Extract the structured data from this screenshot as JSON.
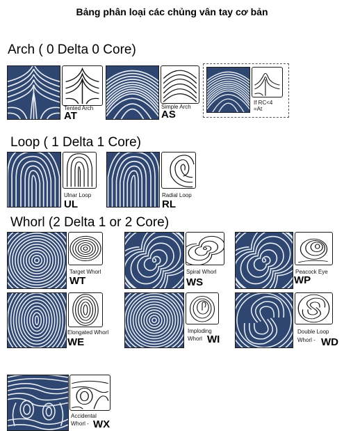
{
  "title": "Bảng phân loại các chủng vân tay cơ bản",
  "sections": {
    "arch": "Arch ( 0 Delta 0 Core)",
    "loop": "Loop ( 1 Delta 1 Core)",
    "whorl": "Whorl (2 Delta  1 or 2 Core)"
  },
  "patterns": {
    "at": {
      "label": "Tented Arch",
      "code": "AT"
    },
    "as": {
      "label": "Simple Arch",
      "code": "AS"
    },
    "rc": {
      "label1": "If RC<4",
      "label2": "=At"
    },
    "ul": {
      "label": "Ulnar Loop",
      "code": "UL"
    },
    "rl": {
      "label": "Radial Loop",
      "code": "RL"
    },
    "wt": {
      "label": "Target Whorl",
      "code": "WT"
    },
    "ws": {
      "label": "Spiral Whorl",
      "code": "WS"
    },
    "wp": {
      "label": "Peacock Eye",
      "code": "WP"
    },
    "we": {
      "label": "Elongated Whorl",
      "code": "WE"
    },
    "wi": {
      "label1": "Imploding",
      "label2": "Whorl",
      "code": "WI"
    },
    "wd": {
      "label1": "Double Loop",
      "label2": "Whorl -",
      "code": "WD"
    },
    "wx": {
      "label1": "Accidental",
      "label2": "Whorl -",
      "code": "WX"
    }
  },
  "colors": {
    "print_bg": "#2e4670",
    "ridge": "#e8edf5"
  }
}
